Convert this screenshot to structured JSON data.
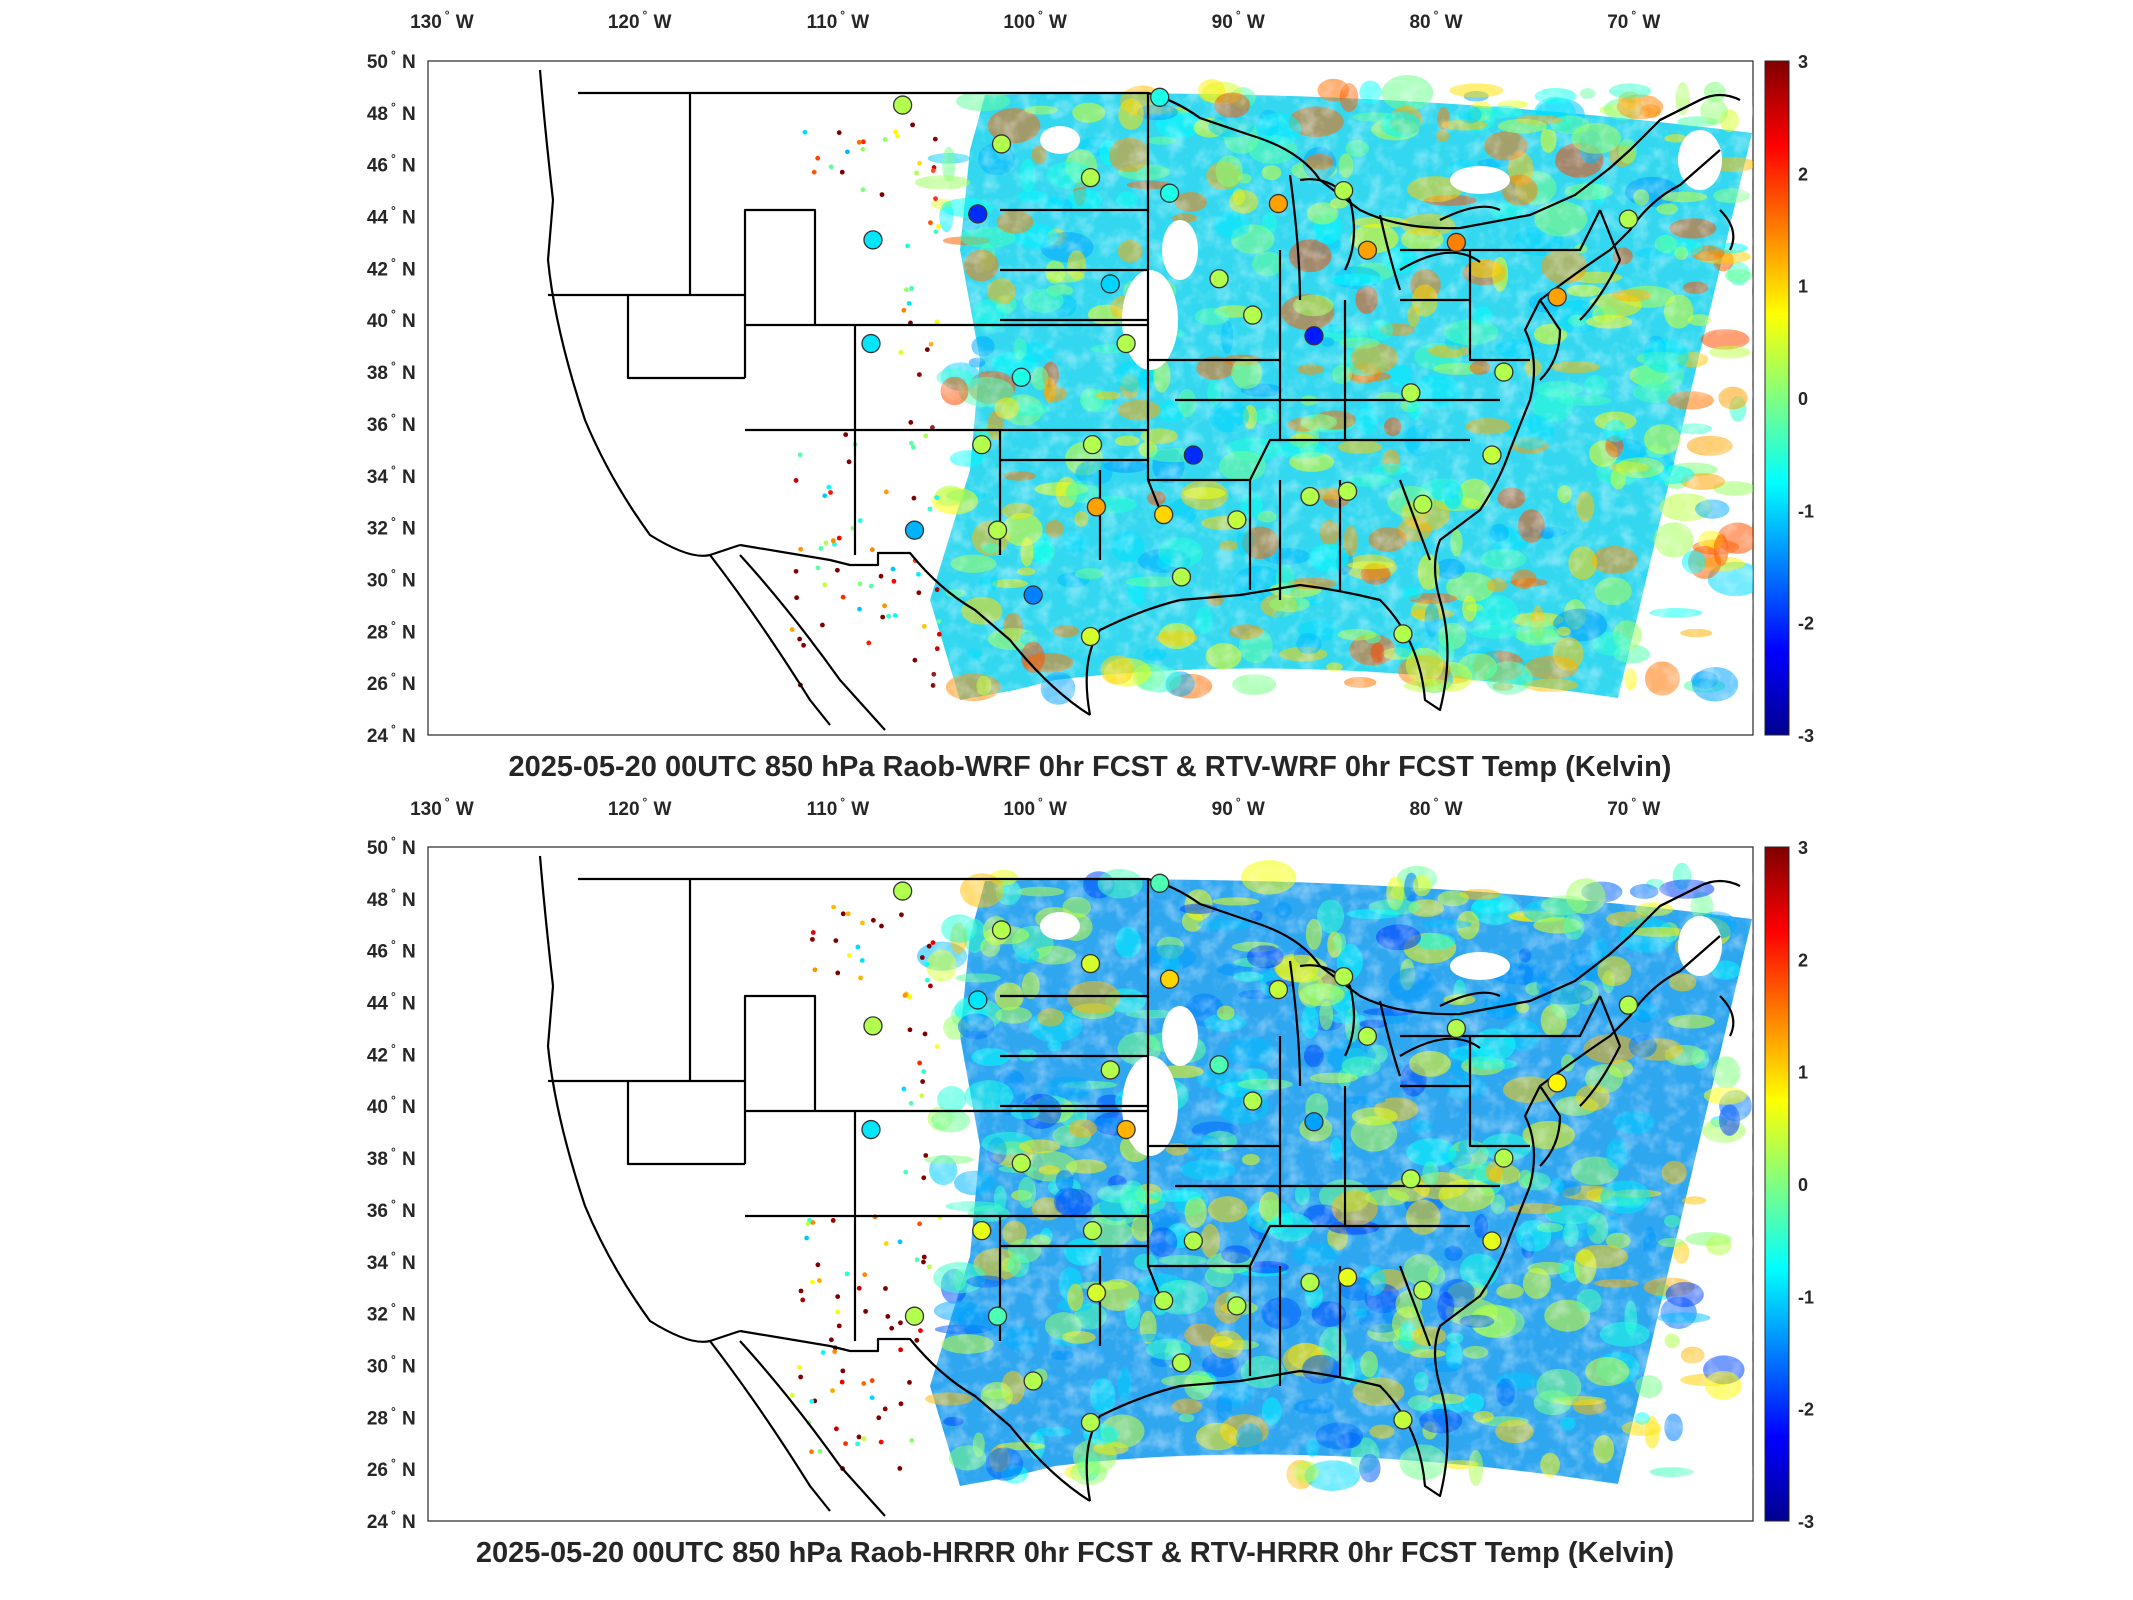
{
  "panels": [
    {
      "id": "wrf",
      "title": "2025-05-20 00UTC 850 hPa Raob-WRF 0hr FCST & RTV-WRF 0hr FCST Temp (Kelvin)"
    },
    {
      "id": "hrrr",
      "title": "2025-05-20 00UTC 850 hPa Raob-HRRR 0hr FCST & RTV-HRRR 0hr FCST Temp (Kelvin)"
    }
  ],
  "lon_ticks": [
    {
      "deg": "130",
      "hem": "W",
      "value": -130
    },
    {
      "deg": "120",
      "hem": "W",
      "value": -120
    },
    {
      "deg": "110",
      "hem": "W",
      "value": -110
    },
    {
      "deg": "100",
      "hem": "W",
      "value": -100
    },
    {
      "deg": "90",
      "hem": "W",
      "value": -90
    },
    {
      "deg": "80",
      "hem": "W",
      "value": -80
    },
    {
      "deg": "70",
      "hem": "W",
      "value": -70
    }
  ],
  "lat_ticks": [
    {
      "deg": "50",
      "hem": "N",
      "value": 50
    },
    {
      "deg": "48",
      "hem": "N",
      "value": 48
    },
    {
      "deg": "46",
      "hem": "N",
      "value": 46
    },
    {
      "deg": "44",
      "hem": "N",
      "value": 44
    },
    {
      "deg": "42",
      "hem": "N",
      "value": 42
    },
    {
      "deg": "40",
      "hem": "N",
      "value": 40
    },
    {
      "deg": "38",
      "hem": "N",
      "value": 38
    },
    {
      "deg": "36",
      "hem": "N",
      "value": 36
    },
    {
      "deg": "34",
      "hem": "N",
      "value": 34
    },
    {
      "deg": "32",
      "hem": "N",
      "value": 32
    },
    {
      "deg": "30",
      "hem": "N",
      "value": 30
    },
    {
      "deg": "28",
      "hem": "N",
      "value": 28
    },
    {
      "deg": "26",
      "hem": "N",
      "value": 26
    },
    {
      "deg": "24",
      "hem": "N",
      "value": 24
    }
  ],
  "colorbar": {
    "min": -3,
    "max": 3,
    "ticks": [
      "3",
      "2",
      "1",
      "0",
      "-1",
      "-2",
      "-3"
    ],
    "colormap": "jet",
    "colors": [
      "#00008f",
      "#0000ff",
      "#0080ff",
      "#00ffff",
      "#80ff80",
      "#ffff00",
      "#ff8000",
      "#ff0000",
      "#800000"
    ]
  },
  "map": {
    "lon_range": [
      -131,
      -64
    ],
    "lat_range": [
      24,
      50
    ],
    "border_color": "#000000"
  },
  "stations": {
    "wrf": [
      {
        "lon": -107,
        "lat": 48.3,
        "val": 0.3
      },
      {
        "lon": -102,
        "lat": 46.8,
        "val": 0.3
      },
      {
        "lon": -97.5,
        "lat": 45.5,
        "val": 0.3
      },
      {
        "lon": -94,
        "lat": 48.6,
        "val": -0.6
      },
      {
        "lon": -93.5,
        "lat": 44.9,
        "val": -0.6
      },
      {
        "lon": -88,
        "lat": 44.5,
        "val": 1.3
      },
      {
        "lon": -84.7,
        "lat": 45,
        "val": 0.3
      },
      {
        "lon": -83.5,
        "lat": 42.7,
        "val": 1.3
      },
      {
        "lon": -79,
        "lat": 43,
        "val": 1.5
      },
      {
        "lon": -103.2,
        "lat": 44.1,
        "val": -2.0
      },
      {
        "lon": -108.5,
        "lat": 43.1,
        "val": -0.9
      },
      {
        "lon": -96.5,
        "lat": 41.4,
        "val": -1.0
      },
      {
        "lon": -91,
        "lat": 41.6,
        "val": 0.3
      },
      {
        "lon": -89.3,
        "lat": 40.2,
        "val": 0.3
      },
      {
        "lon": -86.2,
        "lat": 39.4,
        "val": -2.1
      },
      {
        "lon": -108.6,
        "lat": 39.1,
        "val": -0.9
      },
      {
        "lon": -101,
        "lat": 37.8,
        "val": -0.6
      },
      {
        "lon": -95.7,
        "lat": 39.1,
        "val": 0.3
      },
      {
        "lon": -81.3,
        "lat": 37.2,
        "val": 0.3
      },
      {
        "lon": -103,
        "lat": 35.2,
        "val": 0.3
      },
      {
        "lon": -97.4,
        "lat": 35.2,
        "val": 0.3
      },
      {
        "lon": -92.3,
        "lat": 34.8,
        "val": -2.0
      },
      {
        "lon": -97.2,
        "lat": 32.8,
        "val": 1.3
      },
      {
        "lon": -93.8,
        "lat": 32.5,
        "val": 1.0
      },
      {
        "lon": -90.1,
        "lat": 32.3,
        "val": 0.4
      },
      {
        "lon": -86.4,
        "lat": 33.2,
        "val": 0.3
      },
      {
        "lon": -84.5,
        "lat": 33.4,
        "val": 0.3
      },
      {
        "lon": -106.4,
        "lat": 31.9,
        "val": -1.2
      },
      {
        "lon": -102.2,
        "lat": 31.9,
        "val": 0.3
      },
      {
        "lon": -100.4,
        "lat": 29.4,
        "val": -1.5
      },
      {
        "lon": -97.5,
        "lat": 27.8,
        "val": 0.5
      },
      {
        "lon": -92.9,
        "lat": 30.1,
        "val": 0.3
      },
      {
        "lon": -80.7,
        "lat": 32.9,
        "val": 0.3
      },
      {
        "lon": -81.7,
        "lat": 27.9,
        "val": 0.3
      },
      {
        "lon": -77.2,
        "lat": 34.8,
        "val": 0.4
      },
      {
        "lon": -76.6,
        "lat": 38.0,
        "val": 0.3
      },
      {
        "lon": -73.9,
        "lat": 40.9,
        "val": 1.3
      },
      {
        "lon": -70.3,
        "lat": 43.9,
        "val": 0.3
      }
    ],
    "hrrr": [
      {
        "lon": -107,
        "lat": 48.3,
        "val": 0.3
      },
      {
        "lon": -102,
        "lat": 46.8,
        "val": 0.3
      },
      {
        "lon": -97.5,
        "lat": 45.5,
        "val": 0.5
      },
      {
        "lon": -94,
        "lat": 48.6,
        "val": -0.3
      },
      {
        "lon": -93.5,
        "lat": 44.9,
        "val": 1.0
      },
      {
        "lon": -88,
        "lat": 44.5,
        "val": 0.4
      },
      {
        "lon": -84.7,
        "lat": 45,
        "val": 0.3
      },
      {
        "lon": -83.5,
        "lat": 42.7,
        "val": 0.3
      },
      {
        "lon": -79,
        "lat": 43,
        "val": 0.3
      },
      {
        "lon": -103.2,
        "lat": 44.1,
        "val": -0.9
      },
      {
        "lon": -108.5,
        "lat": 43.1,
        "val": 0.3
      },
      {
        "lon": -96.5,
        "lat": 41.4,
        "val": 0.3
      },
      {
        "lon": -91,
        "lat": 41.6,
        "val": -0.3
      },
      {
        "lon": -89.3,
        "lat": 40.2,
        "val": 0.3
      },
      {
        "lon": -86.2,
        "lat": 39.4,
        "val": -1.3
      },
      {
        "lon": -108.6,
        "lat": 39.1,
        "val": -0.9
      },
      {
        "lon": -101,
        "lat": 37.8,
        "val": 0.3
      },
      {
        "lon": -95.7,
        "lat": 39.1,
        "val": 1.2
      },
      {
        "lon": -81.3,
        "lat": 37.2,
        "val": 0.3
      },
      {
        "lon": -103,
        "lat": 35.2,
        "val": 0.6
      },
      {
        "lon": -97.4,
        "lat": 35.2,
        "val": 0.3
      },
      {
        "lon": -92.3,
        "lat": 34.8,
        "val": 0.3
      },
      {
        "lon": -97.2,
        "lat": 32.8,
        "val": 0.5
      },
      {
        "lon": -93.8,
        "lat": 32.5,
        "val": 0.3
      },
      {
        "lon": -90.1,
        "lat": 32.3,
        "val": 0.3
      },
      {
        "lon": -86.4,
        "lat": 33.2,
        "val": 0.3
      },
      {
        "lon": -84.5,
        "lat": 33.4,
        "val": 0.6
      },
      {
        "lon": -106.4,
        "lat": 31.9,
        "val": 0.3
      },
      {
        "lon": -102.2,
        "lat": 31.9,
        "val": -0.3
      },
      {
        "lon": -100.4,
        "lat": 29.4,
        "val": 0.3
      },
      {
        "lon": -97.5,
        "lat": 27.8,
        "val": 0.3
      },
      {
        "lon": -92.9,
        "lat": 30.1,
        "val": 0.3
      },
      {
        "lon": -80.7,
        "lat": 32.9,
        "val": 0.3
      },
      {
        "lon": -81.7,
        "lat": 27.9,
        "val": 0.4
      },
      {
        "lon": -77.2,
        "lat": 34.8,
        "val": 0.6
      },
      {
        "lon": -76.6,
        "lat": 38.0,
        "val": 0.3
      },
      {
        "lon": -73.9,
        "lat": 40.9,
        "val": 0.8
      },
      {
        "lon": -70.3,
        "lat": 43.9,
        "val": 0.3
      }
    ]
  }
}
